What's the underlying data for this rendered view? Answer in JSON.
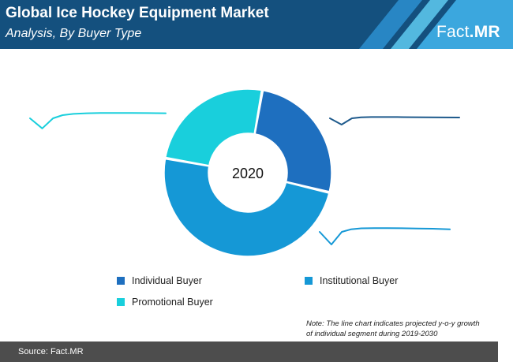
{
  "header": {
    "title": "Global Ice Hockey Equipment Market",
    "subtitle": "Analysis, By Buyer Type",
    "logo_part1": "Fact",
    "logo_part2": ".MR"
  },
  "colors": {
    "header_bg": "#14507e",
    "individual": "#1e6fbf",
    "institutional": "#1598d6",
    "promotional": "#19cfdc",
    "footer_bg": "#4d4d4d"
  },
  "chart_data": {
    "type": "pie",
    "donut": true,
    "center_label": "2020",
    "series": [
      {
        "name": "Individual Buyer",
        "value": 26,
        "color": "#1e6fbf"
      },
      {
        "name": "Institutional Buyer",
        "value": 49,
        "color": "#1598d6"
      },
      {
        "name": "Promotional Buyer",
        "value": 25,
        "color": "#19cfdc"
      }
    ],
    "legend": [
      {
        "label": "Individual Buyer",
        "color": "#1e6fbf"
      },
      {
        "label": "Institutional Buyer",
        "color": "#1598d6"
      },
      {
        "label": "Promotional Buyer",
        "color": "#19cfdc"
      }
    ],
    "sparklines": [
      {
        "series": "Promotional Buyer",
        "color": "#19cfdc",
        "values": [
          5.0,
          4.2,
          5.0,
          5.25,
          5.35,
          5.4,
          5.42,
          5.42,
          5.42,
          5.41,
          5.4
        ]
      },
      {
        "series": "Individual Buyer",
        "color": "#1e5a8c",
        "values": [
          5.0,
          4.5,
          5.0,
          5.08,
          5.1,
          5.1,
          5.1,
          5.09,
          5.08,
          5.07,
          5.06
        ]
      },
      {
        "series": "Institutional Buyer",
        "color": "#1598d6",
        "values": [
          5.0,
          4.0,
          5.0,
          5.2,
          5.28,
          5.3,
          5.3,
          5.29,
          5.27,
          5.25,
          5.2
        ]
      }
    ]
  },
  "note": {
    "line1": "Note: The line chart indicates projected y-o-y growth",
    "line2": "of individual segment during 2019-2030"
  },
  "footer": {
    "source": "Source: Fact.MR"
  }
}
